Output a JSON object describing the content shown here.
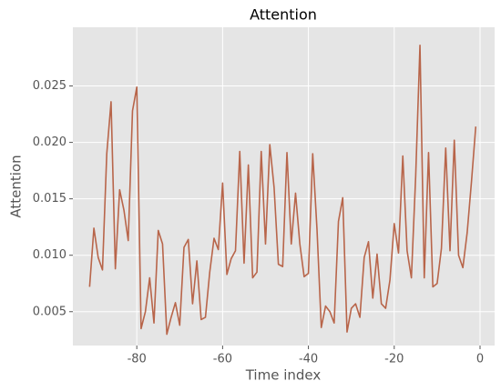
{
  "chart_data": {
    "type": "line",
    "title": "Attention",
    "xlabel": "Time index",
    "ylabel": "Attention",
    "x": [
      -91,
      -90,
      -89,
      -88,
      -87,
      -86,
      -85,
      -84,
      -83,
      -82,
      -81,
      -80,
      -79,
      -78,
      -77,
      -76,
      -75,
      -74,
      -73,
      -72,
      -71,
      -70,
      -69,
      -68,
      -67,
      -66,
      -65,
      -64,
      -63,
      -62,
      -61,
      -60,
      -59,
      -58,
      -57,
      -56,
      -55,
      -54,
      -53,
      -52,
      -51,
      -50,
      -49,
      -48,
      -47,
      -46,
      -45,
      -44,
      -43,
      -42,
      -41,
      -40,
      -39,
      -38,
      -37,
      -36,
      -35,
      -34,
      -33,
      -32,
      -31,
      -30,
      -29,
      -28,
      -27,
      -26,
      -25,
      -24,
      -23,
      -22,
      -21,
      -20,
      -19,
      -18,
      -17,
      -16,
      -15,
      -14,
      -13,
      -12,
      -11,
      -10,
      -9,
      -8,
      -7,
      -6,
      -5,
      -4,
      -3,
      -2,
      -1
    ],
    "series": [
      {
        "name": "Attention",
        "color": "#b8654a",
        "values": [
          0.0072,
          0.0124,
          0.0098,
          0.0087,
          0.019,
          0.0236,
          0.0088,
          0.0158,
          0.014,
          0.0113,
          0.0228,
          0.0249,
          0.0035,
          0.005,
          0.008,
          0.004,
          0.0122,
          0.011,
          0.003,
          0.0045,
          0.0058,
          0.0038,
          0.0107,
          0.0114,
          0.0057,
          0.0095,
          0.0043,
          0.0045,
          0.0085,
          0.0115,
          0.0105,
          0.0164,
          0.0083,
          0.0097,
          0.0104,
          0.0192,
          0.0093,
          0.018,
          0.008,
          0.0085,
          0.0192,
          0.011,
          0.0198,
          0.016,
          0.0092,
          0.009,
          0.0191,
          0.011,
          0.0155,
          0.011,
          0.0081,
          0.0084,
          0.019,
          0.0123,
          0.0036,
          0.0055,
          0.005,
          0.004,
          0.013,
          0.0151,
          0.0032,
          0.0053,
          0.0057,
          0.0045,
          0.0098,
          0.0112,
          0.0062,
          0.0101,
          0.0057,
          0.0053,
          0.0078,
          0.0128,
          0.0102,
          0.0188,
          0.0104,
          0.008,
          0.017,
          0.0286,
          0.008,
          0.0191,
          0.0072,
          0.0075,
          0.0106,
          0.0195,
          0.0104,
          0.0202,
          0.01,
          0.0089,
          0.012,
          0.0165,
          0.0214
        ]
      }
    ],
    "xlim": [
      -94.9,
      3.4
    ],
    "xticks": [
      -80,
      -60,
      -40,
      -20,
      0
    ],
    "ylim": [
      0.002,
      0.0302
    ],
    "yticks": [
      0.005,
      {
        "value": 0.01,
        "label": "0.010"
      },
      0.015,
      {
        "value": 0.02,
        "label": "0.020"
      },
      0.025
    ],
    "grid": true
  }
}
